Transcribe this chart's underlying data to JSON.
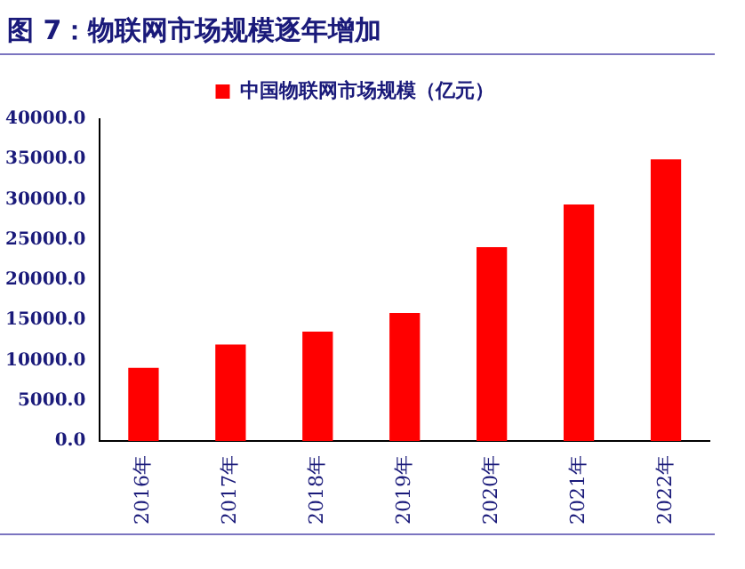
{
  "chart_data": {
    "type": "bar",
    "title": "图 7：物联网市场规模逐年增加",
    "categories": [
      "2016年",
      "2017年",
      "2018年",
      "2019年",
      "2020年",
      "2021年",
      "2022年"
    ],
    "series": [
      {
        "name": "中国物联网市场规模（亿元）",
        "color": "#ff0000",
        "values": [
          9100,
          12000,
          13600,
          15900,
          24100,
          29400,
          35000
        ]
      }
    ],
    "ylim": [
      0,
      40000
    ],
    "yticks": [
      {
        "value": 0,
        "label": "0.0"
      },
      {
        "value": 5000,
        "label": "5000.0"
      },
      {
        "value": 10000,
        "label": "10000.0"
      },
      {
        "value": 15000,
        "label": "15000.0"
      },
      {
        "value": 20000,
        "label": "20000.0"
      },
      {
        "value": 25000,
        "label": "25000.0"
      },
      {
        "value": 30000,
        "label": "30000.0"
      },
      {
        "value": 35000,
        "label": "35000.0"
      },
      {
        "value": 40000,
        "label": "40000.0"
      }
    ],
    "grid": false,
    "legend": "top"
  }
}
